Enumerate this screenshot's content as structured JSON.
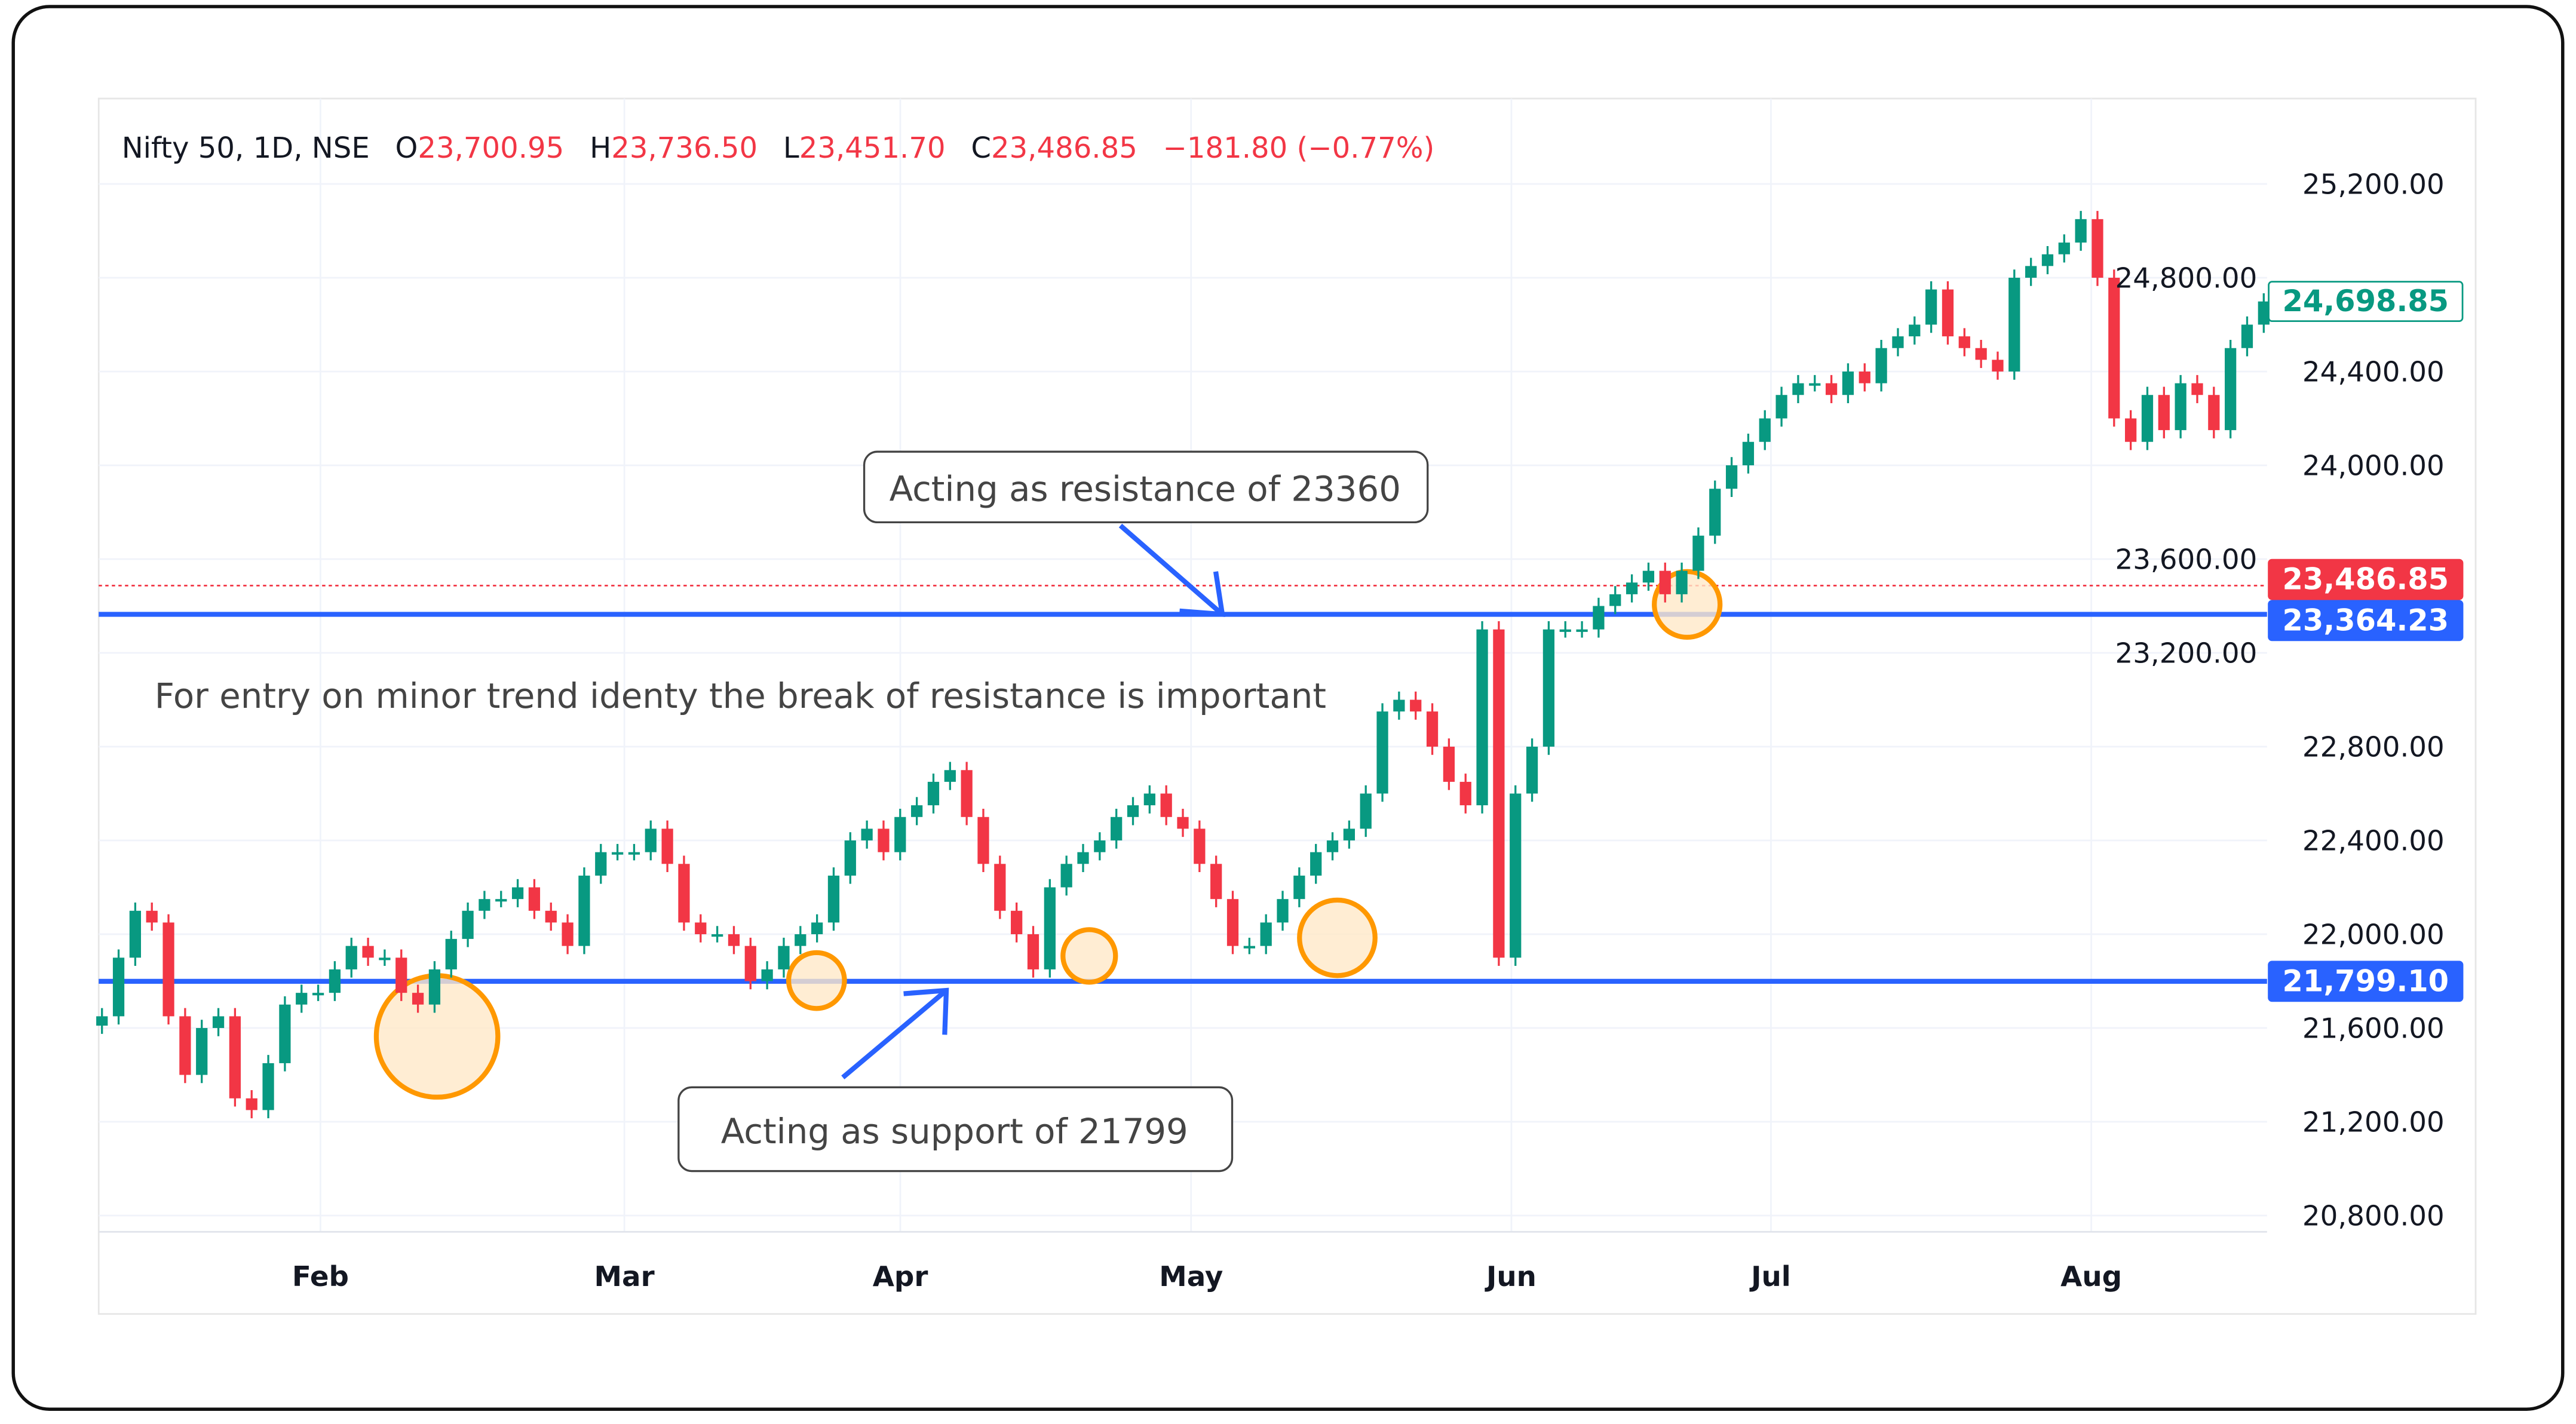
{
  "header": {
    "symbol": "Nifty 50, 1D, NSE",
    "o_label": "O",
    "o_value": "23,700.95",
    "h_label": "H",
    "h_value": "23,736.50",
    "l_label": "L",
    "l_value": "23,451.70",
    "c_label": "C",
    "c_value": "23,486.85",
    "change": "−181.80 (−0.77%)"
  },
  "colors": {
    "up": "#089981",
    "down": "#f23645",
    "line": "#2962ff",
    "highlight": "#ff9800"
  },
  "chart_data": {
    "type": "candlestick",
    "title": "Nifty 50, 1D, NSE",
    "ylim": [
      20700,
      25400
    ],
    "y_ticks": [
      "25,200.00",
      "24,800.00",
      "24,400.00",
      "24,000.00",
      "23,600.00",
      "23,200.00",
      "22,800.00",
      "22,400.00",
      "22,000.00",
      "21,600.00",
      "21,200.00",
      "20,800.00"
    ],
    "y_tick_values": [
      25200,
      24800,
      24400,
      24000,
      23600,
      23200,
      22800,
      22400,
      22000,
      21600,
      21200,
      20800
    ],
    "x_ticks": [
      "Feb",
      "Mar",
      "Apr",
      "May",
      "Jun",
      "Jul",
      "Aug"
    ],
    "closes": [
      21650,
      21900,
      22100,
      22050,
      21650,
      21400,
      21600,
      21650,
      21300,
      21250,
      21450,
      21700,
      21750,
      21750,
      21850,
      21950,
      21900,
      21900,
      21750,
      21700,
      21850,
      21980,
      22100,
      22150,
      22150,
      22200,
      22100,
      22050,
      21950,
      22250,
      22350,
      22350,
      22350,
      22450,
      22300,
      22050,
      22000,
      22000,
      21950,
      21800,
      21850,
      21950,
      22000,
      22050,
      22250,
      22400,
      22450,
      22350,
      22500,
      22550,
      22650,
      22700,
      22500,
      22300,
      22100,
      22000,
      21850,
      22200,
      22300,
      22350,
      22400,
      22500,
      22550,
      22600,
      22500,
      22450,
      22300,
      22150,
      21950,
      21950,
      22050,
      22150,
      22250,
      22350,
      22400,
      22450,
      22600,
      22950,
      23000,
      22950,
      22800,
      22650,
      22550,
      23300,
      21900,
      22600,
      22800,
      23300,
      23300,
      23300,
      23400,
      23450,
      23500,
      23550,
      23450,
      23550,
      23700,
      23900,
      24000,
      24100,
      24200,
      24300,
      24350,
      24350,
      24300,
      24400,
      24350,
      24500,
      24550,
      24600,
      24750,
      24550,
      24500,
      24450,
      24400,
      24800,
      24850,
      24900,
      24950,
      25050,
      24800,
      24200,
      24100,
      24300,
      24150,
      24350,
      24300,
      24150,
      24500,
      24600,
      24698.85
    ],
    "price_labels": [
      {
        "text": "24,698.85",
        "value": 24698.85,
        "kind": "last"
      },
      {
        "text": "23,486.85",
        "value": 23486.85,
        "kind": "red"
      },
      {
        "text": "23,364.23",
        "value": 23364.23,
        "kind": "line"
      },
      {
        "text": "21,799.10",
        "value": 21799.1,
        "kind": "line"
      }
    ],
    "levels": {
      "resistance": 23364.23,
      "support": 21799.1,
      "last_dotted": 23486.85
    }
  },
  "annotations": {
    "resistance": "Acting as resistance of 23360",
    "support": "Acting as support of 21799",
    "note": "For entry on minor trend identy the break of resistance is important"
  }
}
